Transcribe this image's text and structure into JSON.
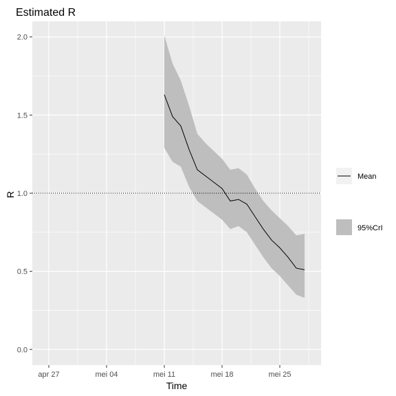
{
  "chart_data": {
    "type": "line",
    "title": "Estimated R",
    "xlabel": "Time",
    "ylabel": "R",
    "x_ticks": [
      {
        "date": "2020-04-27",
        "label": "apr 27"
      },
      {
        "date": "2020-05-04",
        "label": "mei 04"
      },
      {
        "date": "2020-05-11",
        "label": "mei 11"
      },
      {
        "date": "2020-05-18",
        "label": "mei 18"
      },
      {
        "date": "2020-05-25",
        "label": "mei 25"
      }
    ],
    "y_ticks": [
      {
        "value": 0.0,
        "label": "0.0"
      },
      {
        "value": 0.5,
        "label": "0.5"
      },
      {
        "value": 1.0,
        "label": "1.0"
      },
      {
        "value": 1.5,
        "label": "1.5"
      },
      {
        "value": 2.0,
        "label": "2.0"
      }
    ],
    "xlim": [
      "2020-04-25",
      "2020-05-30"
    ],
    "ylim": [
      -0.1,
      2.1
    ],
    "grid": true,
    "reference_line": {
      "y": 1.0,
      "style": "dotted"
    },
    "legend": {
      "placement": "right",
      "items": [
        {
          "key": "mean",
          "label": "Mean"
        },
        {
          "key": "crl",
          "label": "95%CrI"
        }
      ]
    },
    "colors": {
      "panel": "#ebebeb",
      "grid": "#ffffff",
      "ribbon": "#bebebe",
      "line": "#000000"
    },
    "dates": [
      "2020-05-11",
      "2020-05-12",
      "2020-05-13",
      "2020-05-14",
      "2020-05-15",
      "2020-05-16",
      "2020-05-17",
      "2020-05-18",
      "2020-05-19",
      "2020-05-20",
      "2020-05-21",
      "2020-05-22",
      "2020-05-23",
      "2020-05-24",
      "2020-05-25",
      "2020-05-26",
      "2020-05-27",
      "2020-05-28"
    ],
    "series": [
      {
        "name": "Mean",
        "values": [
          1.63,
          1.49,
          1.43,
          1.28,
          1.15,
          1.11,
          1.07,
          1.03,
          0.95,
          0.96,
          0.93,
          0.85,
          0.77,
          0.7,
          0.65,
          0.59,
          0.52,
          0.51
        ]
      },
      {
        "name": "95%CrI",
        "lower": [
          1.29,
          1.2,
          1.17,
          1.04,
          0.95,
          0.91,
          0.87,
          0.83,
          0.77,
          0.79,
          0.75,
          0.67,
          0.59,
          0.52,
          0.47,
          0.41,
          0.35,
          0.33
        ],
        "upper": [
          2.01,
          1.83,
          1.72,
          1.56,
          1.38,
          1.32,
          1.27,
          1.22,
          1.15,
          1.16,
          1.12,
          1.03,
          0.95,
          0.89,
          0.84,
          0.79,
          0.73,
          0.74
        ]
      }
    ]
  }
}
